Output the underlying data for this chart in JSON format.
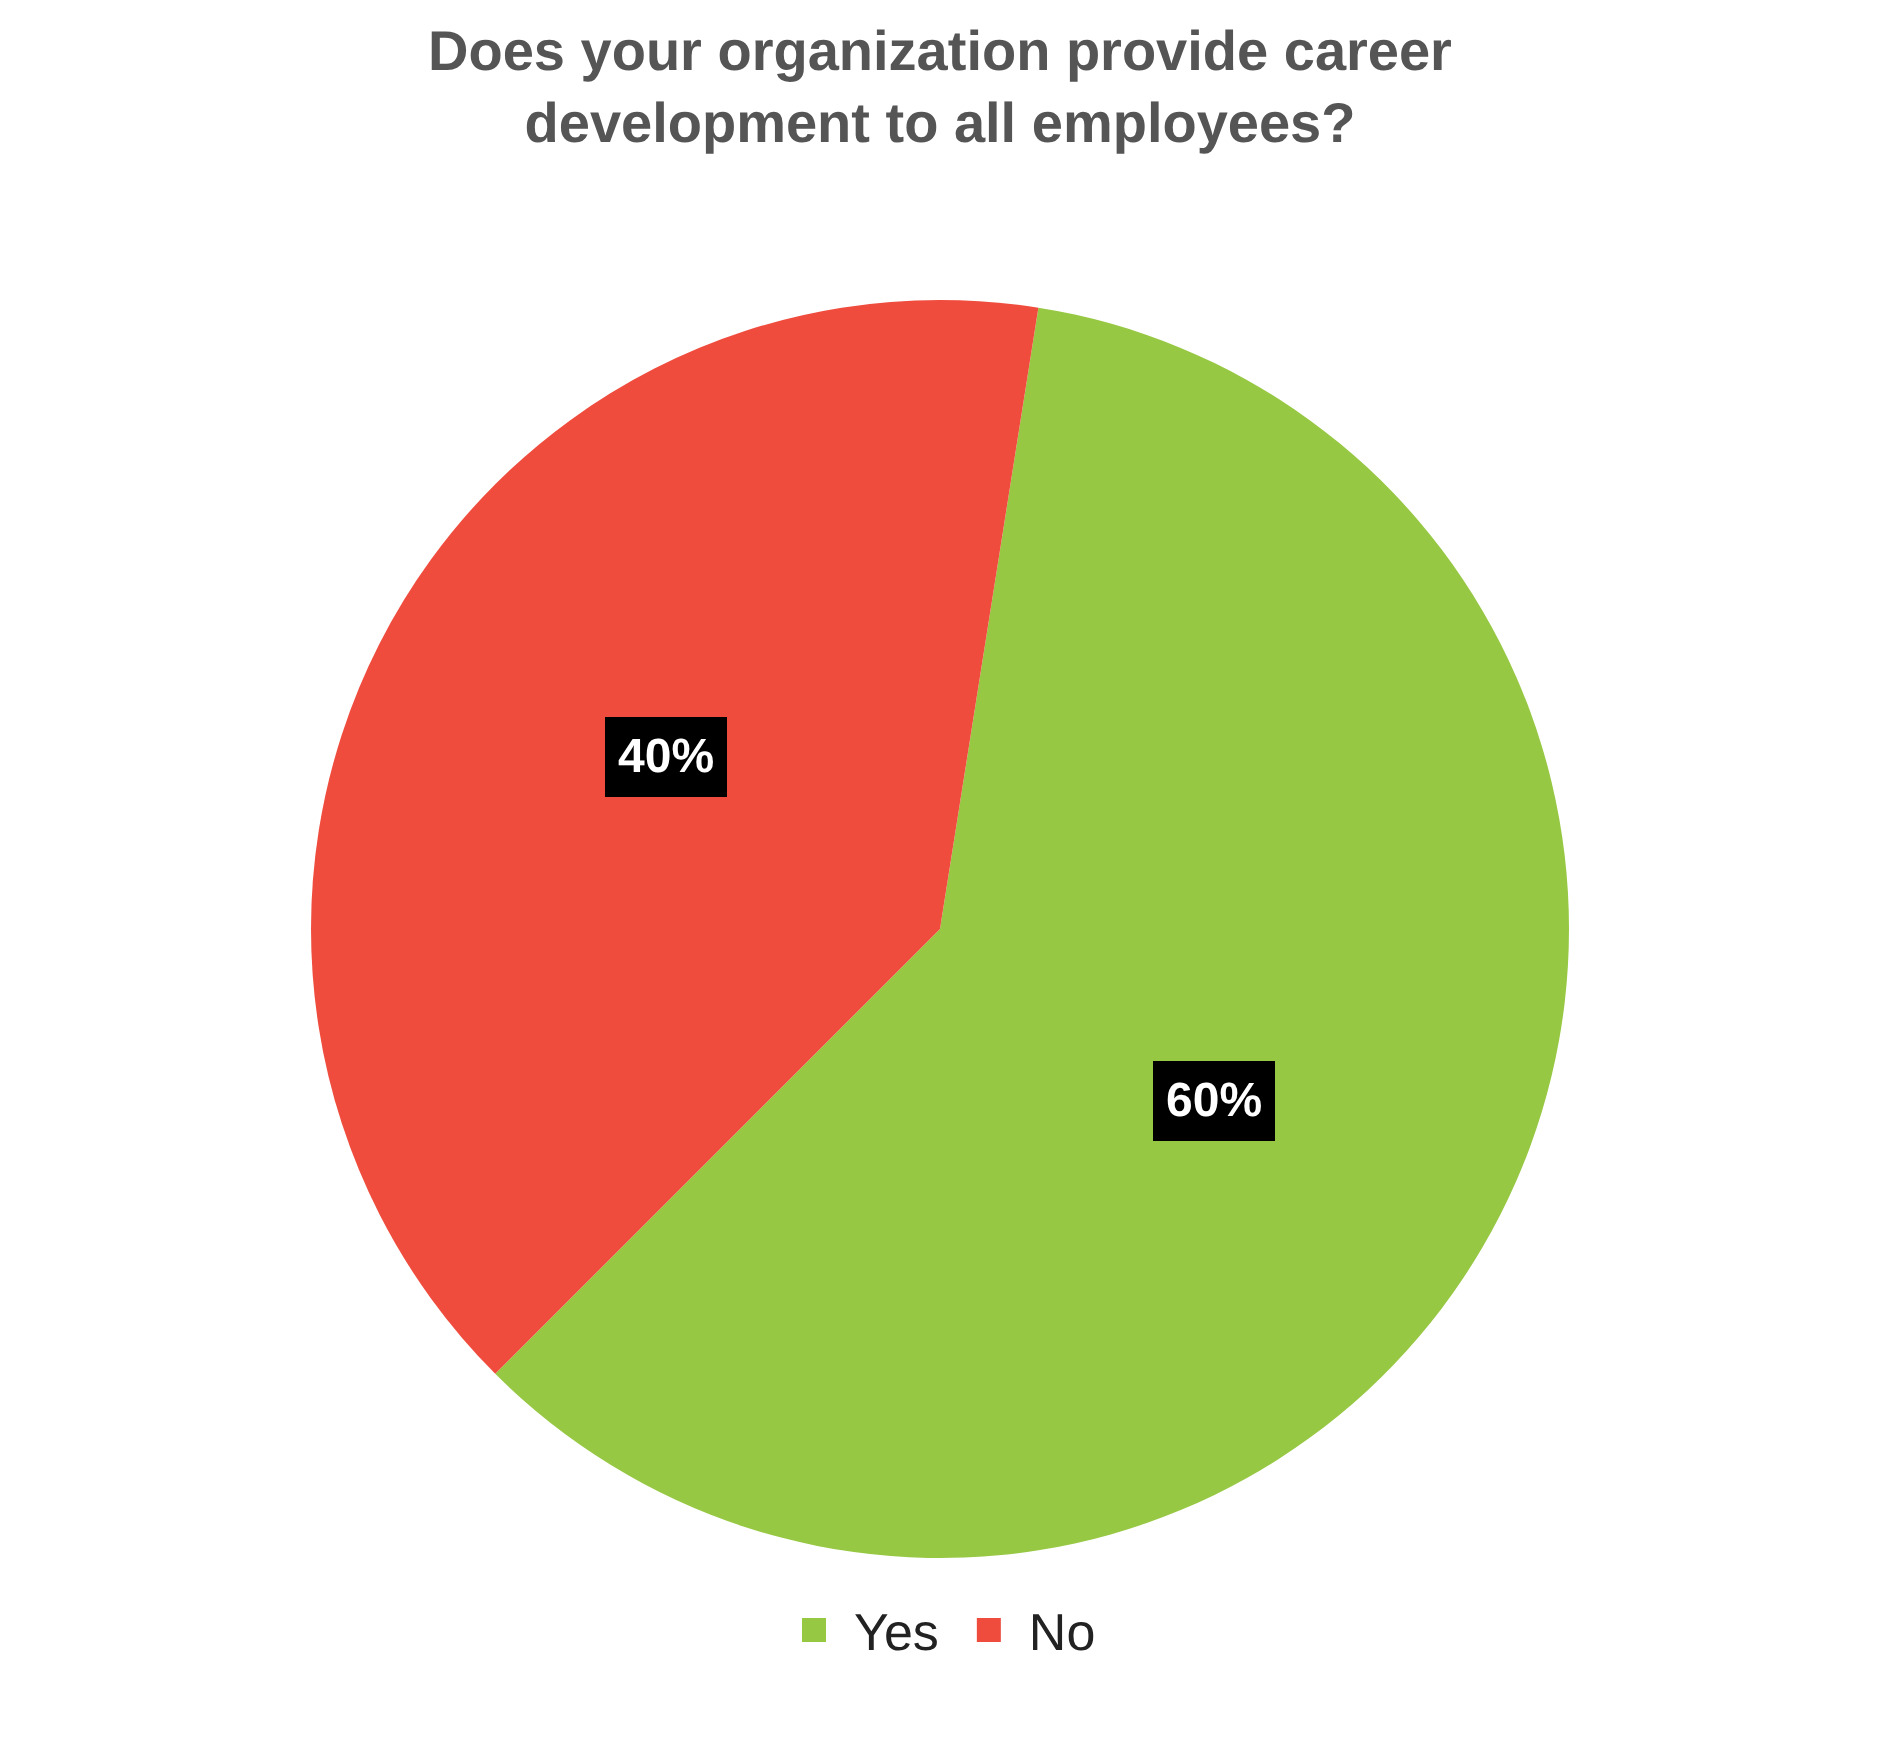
{
  "chart_data": {
    "type": "pie",
    "title": "Does your organization provide career development to all employees?",
    "categories": [
      "Yes",
      "No"
    ],
    "values": [
      60,
      40
    ],
    "colors": [
      "#97c843",
      "#f04c3e"
    ],
    "value_labels": [
      "60%",
      "40%"
    ],
    "legend": "bottom"
  }
}
